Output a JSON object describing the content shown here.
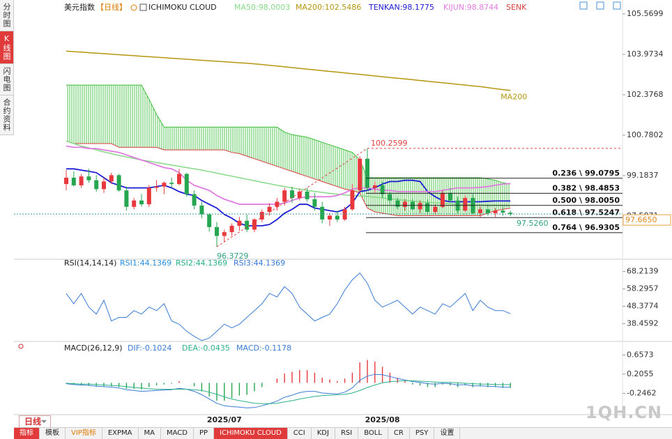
{
  "header": {
    "title": "美元指数",
    "period": "【日线】",
    "indicator": "ICHIMOKU CLOUD"
  },
  "sidebar": {
    "tabs": [
      "分时图",
      "K线图",
      "闪电图",
      "合约资料"
    ]
  },
  "period_button": "日线",
  "toolbar": {
    "items": [
      "指标",
      "模板",
      "VIP指标",
      "EXPMA",
      "MA",
      "MACD",
      "PP",
      "ICHIMOKU CLOUD",
      "CCI",
      "KDJ",
      "RSI",
      "BOLL",
      "CR",
      "PSY",
      "设置"
    ]
  },
  "watermark": "1QH.CN",
  "chart_data": [
    {
      "type": "candlestick",
      "categories": [
        null,
        null,
        null,
        null,
        null,
        null,
        null,
        null,
        null,
        null,
        null,
        null,
        null,
        null,
        null,
        null,
        null,
        null,
        null,
        null,
        null,
        "2025/07",
        null,
        null,
        null,
        null,
        null,
        null,
        null,
        null,
        null,
        null,
        null,
        null,
        null,
        null,
        null,
        null,
        null,
        null,
        null,
        null,
        "2025/08",
        null,
        null,
        null,
        null,
        null,
        null,
        null,
        null,
        null,
        null,
        null,
        null,
        null,
        null,
        null,
        null,
        null
      ],
      "open": [
        98.85,
        99.1,
        98.8,
        99.15,
        99.0,
        98.65,
        98.95,
        99.2,
        98.6,
        97.95,
        98.2,
        98.05,
        98.7,
        98.75,
        98.9,
        98.85,
        99.25,
        98.45,
        98.0,
        97.65,
        97.15,
        96.8,
        96.95,
        97.2,
        97.4,
        97.05,
        97.45,
        97.75,
        97.95,
        98.15,
        98.6,
        98.3,
        98.55,
        98.25,
        97.95,
        97.45,
        97.6,
        97.45,
        97.85,
        98.6,
        99.85,
        98.7,
        98.8,
        98.45,
        98.2,
        97.95,
        98.15,
        97.85,
        98.1,
        97.75,
        97.95,
        98.5,
        98.2,
        97.8,
        98.3,
        97.7,
        97.85,
        97.7,
        97.8,
        97.72
      ],
      "high": [
        99.4,
        99.35,
        99.25,
        99.45,
        99.2,
        99.1,
        99.3,
        99.25,
        98.75,
        98.3,
        98.45,
        98.8,
        99.0,
        98.95,
        99.1,
        99.45,
        99.3,
        98.6,
        98.15,
        97.7,
        97.35,
        97.05,
        97.3,
        97.55,
        97.65,
        97.5,
        97.85,
        98.1,
        98.3,
        98.7,
        98.75,
        98.65,
        98.7,
        98.5,
        98.15,
        97.7,
        97.8,
        97.95,
        98.85,
        99.95,
        100.2599,
        98.95,
        98.95,
        98.55,
        98.3,
        98.25,
        98.3,
        98.2,
        98.25,
        98.05,
        98.6,
        98.7,
        98.35,
        98.4,
        98.45,
        97.95,
        98.05,
        97.9,
        97.95,
        97.8
      ],
      "low": [
        98.6,
        98.75,
        98.7,
        98.9,
        98.55,
        98.5,
        98.85,
        98.55,
        97.8,
        97.85,
        97.95,
        97.95,
        98.55,
        98.45,
        98.7,
        98.8,
        98.35,
        97.85,
        97.5,
        96.97,
        96.3729,
        96.55,
        96.8,
        97.0,
        96.95,
        96.95,
        97.35,
        97.6,
        97.8,
        98.0,
        98.1,
        98.2,
        98.15,
        97.8,
        97.3,
        97.2,
        97.35,
        97.4,
        97.8,
        98.5,
        98.6,
        98.5,
        98.3,
        98.05,
        97.85,
        97.8,
        97.8,
        97.7,
        97.65,
        97.65,
        97.9,
        98.15,
        97.7,
        97.75,
        97.65,
        97.55,
        97.6,
        97.55,
        97.6,
        97.58
      ],
      "close": [
        99.1,
        98.8,
        99.15,
        99.0,
        98.65,
        98.95,
        99.2,
        98.6,
        97.95,
        98.2,
        98.05,
        98.7,
        98.75,
        98.9,
        98.85,
        99.25,
        98.45,
        98.0,
        97.65,
        97.15,
        96.8,
        96.95,
        97.2,
        97.4,
        97.05,
        97.45,
        97.75,
        97.95,
        98.15,
        98.6,
        98.3,
        98.55,
        98.25,
        97.95,
        97.45,
        97.6,
        97.45,
        97.85,
        98.6,
        99.85,
        98.7,
        98.8,
        98.45,
        98.2,
        97.95,
        98.15,
        97.85,
        98.1,
        97.75,
        97.95,
        98.5,
        98.2,
        97.8,
        98.3,
        97.7,
        97.85,
        97.7,
        97.8,
        97.72,
        97.665
      ],
      "up_color": "#e8383d",
      "down_color": "#26a650",
      "series": [
        {
          "label": "MA50:98.0003",
          "color": "#86d986",
          "values": [
            100.55,
            100.45,
            100.35,
            100.28,
            100.2,
            100.12,
            100.05,
            99.98,
            99.92,
            99.86,
            99.8,
            99.75,
            99.7,
            99.65,
            99.6,
            99.55,
            99.5,
            99.45,
            99.4,
            99.34,
            99.28,
            99.22,
            99.16,
            99.1,
            99.04,
            98.98,
            98.92,
            98.86,
            98.8,
            98.75,
            98.7,
            98.65,
            98.6,
            98.56,
            98.52,
            98.48,
            98.45,
            98.42,
            98.4,
            98.38,
            98.36,
            98.33,
            98.3,
            98.27,
            98.24,
            98.21,
            98.18,
            98.15,
            98.13,
            98.11,
            98.09,
            98.07,
            98.05,
            98.04,
            98.03,
            98.02,
            98.01,
            98.01,
            98.0,
            98.0
          ]
        },
        {
          "label": "MA200:102.5486",
          "end_label": "MA200",
          "color": "#b5960f",
          "values": [
            104.1,
            104.08,
            104.06,
            104.04,
            104.02,
            104.0,
            103.98,
            103.96,
            103.94,
            103.92,
            103.9,
            103.88,
            103.86,
            103.84,
            103.82,
            103.8,
            103.78,
            103.76,
            103.74,
            103.72,
            103.7,
            103.68,
            103.66,
            103.64,
            103.62,
            103.6,
            103.57,
            103.54,
            103.51,
            103.48,
            103.45,
            103.42,
            103.39,
            103.36,
            103.33,
            103.3,
            103.27,
            103.24,
            103.21,
            103.18,
            103.15,
            103.12,
            103.09,
            103.06,
            103.03,
            103.0,
            102.97,
            102.94,
            102.91,
            102.88,
            102.85,
            102.82,
            102.79,
            102.76,
            102.73,
            102.7,
            102.66,
            102.62,
            102.58,
            102.55
          ]
        },
        {
          "label": "TENKAN:98.1775",
          "color": "#1c1cd6",
          "values": [
            99.45,
            99.45,
            99.4,
            99.35,
            99.3,
            99.1,
            98.9,
            98.8,
            98.7,
            98.7,
            98.7,
            98.7,
            98.75,
            98.8,
            98.7,
            98.55,
            98.45,
            98.4,
            98.2,
            98.05,
            97.9,
            97.65,
            97.5,
            97.3,
            97.2,
            97.2,
            97.2,
            97.25,
            97.45,
            97.7,
            97.85,
            98.05,
            98.05,
            97.9,
            97.85,
            97.8,
            97.75,
            97.85,
            98.1,
            98.55,
            98.6,
            98.7,
            98.85,
            98.95,
            98.95,
            99.0,
            99.0,
            98.95,
            98.55,
            98.35,
            98.2,
            98.15,
            98.15,
            98.15,
            98.15,
            98.15,
            98.17,
            98.18,
            98.18,
            98.18
          ]
        },
        {
          "label": "KIJUN:98.8744",
          "color": "#e07ce0",
          "values": [
            100.35,
            100.3,
            100.3,
            100.25,
            100.25,
            100.2,
            100.15,
            100.1,
            100.0,
            99.9,
            99.8,
            99.7,
            99.6,
            99.5,
            99.45,
            99.3,
            99.0,
            98.8,
            98.7,
            98.6,
            98.4,
            98.25,
            98.15,
            98.05,
            98.05,
            98.05,
            98.05,
            98.05,
            98.05,
            98.1,
            98.2,
            98.3,
            98.35,
            98.35,
            98.35,
            98.35,
            98.4,
            98.5,
            98.65,
            98.7,
            98.7,
            98.65,
            98.6,
            98.6,
            98.55,
            98.55,
            98.55,
            98.55,
            98.55,
            98.55,
            98.6,
            98.65,
            98.7,
            98.7,
            98.7,
            98.72,
            98.75,
            98.8,
            98.85,
            98.87
          ]
        }
      ],
      "cloud": {
        "span_a": {
          "color": "#3cbf3c",
          "values": [
            102.76,
            102.76,
            102.76,
            102.76,
            102.76,
            102.76,
            102.76,
            102.76,
            102.76,
            102.76,
            102.76,
            102.2,
            101.6,
            101.1,
            101.1,
            101.1,
            101.1,
            101.1,
            101.1,
            101.1,
            101.1,
            101.1,
            101.1,
            101.1,
            101.1,
            101.1,
            101.1,
            101.1,
            101.1,
            100.9,
            100.8,
            100.75,
            100.7,
            100.6,
            100.5,
            100.4,
            100.3,
            100.2,
            100.1,
            99.8,
            99.1,
            99.1,
            99.1,
            99.1,
            99.1,
            99.1,
            99.1,
            99.1,
            99.1,
            99.1,
            99.1,
            99.1,
            99.1,
            99.1,
            99.1,
            99.1,
            99.05,
            99.0,
            98.9,
            98.85
          ]
        },
        "span_b": {
          "label": "SENK",
          "color": "#d84040",
          "values": [
            100.55,
            100.45,
            100.45,
            100.45,
            100.45,
            100.45,
            100.45,
            100.3,
            100.3,
            100.3,
            100.3,
            100.3,
            100.3,
            100.2,
            100.2,
            100.2,
            100.2,
            100.2,
            100.2,
            100.2,
            100.2,
            100.2,
            100.1,
            100.05,
            99.95,
            99.85,
            99.75,
            99.65,
            99.55,
            99.45,
            99.35,
            99.25,
            99.15,
            99.05,
            98.95,
            98.85,
            98.75,
            98.65,
            98.6,
            98.5,
            97.9,
            97.75,
            97.7,
            97.65,
            97.6,
            97.6,
            97.6,
            97.6,
            97.6,
            97.6,
            97.6,
            97.6,
            97.6,
            97.6,
            97.6,
            97.6,
            97.7,
            97.8,
            97.85,
            97.9
          ]
        }
      },
      "fib_levels": [
        {
          "value": 99.0795,
          "label": "0.236 \\ 99.0795"
        },
        {
          "value": 98.4853,
          "label": "0.382 \\ 98.4853"
        },
        {
          "value": 98.005,
          "label": "0.500 \\ 98.0050"
        },
        {
          "value": 97.5247,
          "label": "0.618 \\ 97.5247"
        },
        {
          "value": 96.9305,
          "label": "0.764 \\ 96.9305"
        }
      ],
      "current_price": {
        "value": 97.665,
        "label": "97.6650"
      },
      "marker": {
        "value": 97.526,
        "label": "97.5260"
      },
      "ylim": [
        95.88,
        105.9
      ],
      "yticks": [
        105.5699,
        103.9734,
        102.3768,
        100.7802,
        99.1837,
        97.5871
      ],
      "grid": false
    },
    {
      "type": "line",
      "title": "RSI(14,14,14)",
      "legend": [
        {
          "text": "RSI1:44.1369",
          "color": "#2a8fe0"
        },
        {
          "text": "RSI2:44.1369",
          "color": "#2ab08a"
        },
        {
          "text": "RSI3:44.1369",
          "color": "#3a78d8"
        }
      ],
      "series": [
        {
          "color": "#3a7bd5",
          "values": [
            55.7,
            49.8,
            55.7,
            47.9,
            43.9,
            51.8,
            40.0,
            42.0,
            42.0,
            45.9,
            43.9,
            47.9,
            45.9,
            49.8,
            40.0,
            38.1,
            34.1,
            31.2,
            28.8,
            30.2,
            34.1,
            38.1,
            36.1,
            38.1,
            42.0,
            45.9,
            49.8,
            55.7,
            53.7,
            59.6,
            55.7,
            47.9,
            43.9,
            40.0,
            42.0,
            43.9,
            49.8,
            57.6,
            63.5,
            67.4,
            61.5,
            51.8,
            47.9,
            49.8,
            51.8,
            47.9,
            43.9,
            47.9,
            45.9,
            43.9,
            49.8,
            47.9,
            51.8,
            55.7,
            45.9,
            51.8,
            47.9,
            45.9,
            45.9,
            44.14
          ]
        }
      ],
      "ylim": [
        28.28,
        75.26
      ],
      "yticks": [
        68.2139,
        58.2957,
        48.3774,
        38.4592
      ],
      "grid": false
    },
    {
      "type": "macd",
      "title": "MACD(26,12,9)",
      "legend": [
        {
          "text": "DIF:-0.1024",
          "color": "#3a7bd5"
        },
        {
          "text": "DEA:-0.0435",
          "color": "#2ab08a"
        },
        {
          "text": "MACD:-0.1178",
          "color": "#3a7bd5"
        }
      ],
      "dif": {
        "color": "#3a7bd5",
        "values": [
          -0.02,
          -0.04,
          -0.05,
          -0.06,
          -0.08,
          -0.09,
          -0.1,
          -0.12,
          -0.16,
          -0.18,
          -0.2,
          -0.19,
          -0.18,
          -0.17,
          -0.16,
          -0.13,
          -0.15,
          -0.2,
          -0.28,
          -0.38,
          -0.48,
          -0.54,
          -0.56,
          -0.57,
          -0.59,
          -0.58,
          -0.54,
          -0.49,
          -0.43,
          -0.34,
          -0.29,
          -0.23,
          -0.2,
          -0.2,
          -0.24,
          -0.25,
          -0.26,
          -0.22,
          -0.12,
          0.06,
          0.16,
          0.2,
          0.19,
          0.15,
          0.1,
          0.07,
          0.03,
          0.01,
          -0.02,
          -0.03,
          -0.01,
          -0.02,
          -0.05,
          -0.04,
          -0.07,
          -0.07,
          -0.08,
          -0.09,
          -0.1,
          -0.1024
        ]
      },
      "dea": {
        "color": "#2ab08a",
        "values": [
          -0.01,
          -0.02,
          -0.03,
          -0.03,
          -0.04,
          -0.05,
          -0.06,
          -0.07,
          -0.09,
          -0.11,
          -0.12,
          -0.14,
          -0.15,
          -0.15,
          -0.15,
          -0.15,
          -0.15,
          -0.16,
          -0.18,
          -0.22,
          -0.27,
          -0.33,
          -0.38,
          -0.42,
          -0.45,
          -0.48,
          -0.49,
          -0.49,
          -0.48,
          -0.45,
          -0.42,
          -0.38,
          -0.35,
          -0.32,
          -0.3,
          -0.29,
          -0.28,
          -0.27,
          -0.24,
          -0.18,
          -0.11,
          -0.05,
          0.0,
          0.03,
          0.04,
          0.05,
          0.05,
          0.04,
          0.03,
          0.02,
          0.01,
          0.01,
          0.0,
          -0.01,
          -0.02,
          -0.03,
          -0.03,
          -0.04,
          -0.04,
          -0.0435
        ]
      },
      "hist": {
        "up_color": "#e8383d",
        "down_color": "#26a650",
        "values": [
          -0.02,
          -0.04,
          -0.04,
          -0.06,
          -0.08,
          -0.08,
          -0.08,
          -0.1,
          -0.14,
          -0.14,
          -0.16,
          -0.1,
          -0.06,
          -0.04,
          -0.02,
          0.04,
          0.0,
          -0.08,
          -0.2,
          -0.32,
          -0.42,
          -0.42,
          -0.36,
          -0.3,
          -0.28,
          -0.2,
          -0.1,
          0.0,
          0.1,
          0.22,
          0.26,
          0.3,
          0.3,
          0.24,
          0.12,
          0.08,
          0.04,
          0.1,
          0.24,
          0.48,
          0.54,
          0.5,
          0.38,
          0.24,
          0.12,
          0.04,
          -0.04,
          -0.06,
          -0.1,
          -0.1,
          -0.04,
          -0.06,
          -0.1,
          -0.06,
          -0.1,
          -0.08,
          -0.1,
          -0.1,
          -0.12,
          -0.1178
        ]
      },
      "ylim": [
        -0.748,
        0.975
      ],
      "yticks": [
        0.6573,
        0.2055,
        -0.2462
      ],
      "grid": false
    }
  ]
}
